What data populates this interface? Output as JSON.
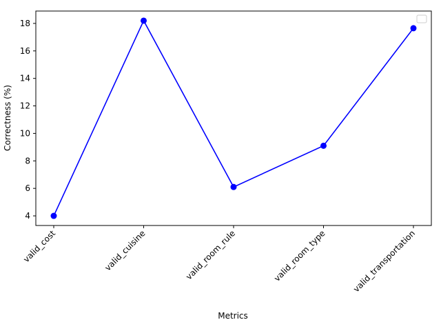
{
  "chart_data": {
    "type": "line",
    "title": "",
    "xlabel": "Metrics",
    "ylabel": "Correctness (%)",
    "categories": [
      "valid_cost",
      "valid_cuisine",
      "valid_room_rule",
      "valid_room_type",
      "valid_transportation"
    ],
    "series": [
      {
        "values": [
          4.0,
          18.2,
          6.1,
          9.1,
          17.65
        ],
        "color": "#0000ff",
        "marker": "circle"
      }
    ],
    "ylim": [
      3.3,
      18.9
    ],
    "yticks": [
      4,
      6,
      8,
      10,
      12,
      14,
      16,
      18
    ],
    "grid": false,
    "legend": {
      "placement": "upper-right",
      "entries": []
    }
  }
}
